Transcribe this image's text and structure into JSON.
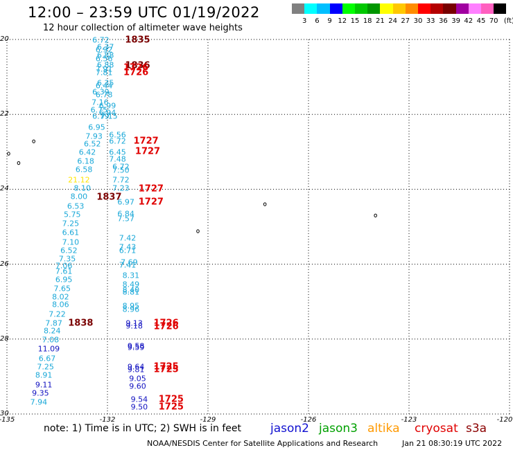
{
  "title": "12:00 – 23:59 UTC 01/19/2022",
  "subtitle": "12 hour collection of altimeter wave heights",
  "legend": {
    "unit": "(ft)",
    "swatches": [
      "#808080",
      "#00ffff",
      "#00bfff",
      "#0000ff",
      "#00ff00",
      "#00c800",
      "#009600",
      "#ffff00",
      "#ffc800",
      "#ff8c00",
      "#ff0000",
      "#b40000",
      "#780000",
      "#a000a0",
      "#ff80ff",
      "#ff60c0",
      "#000000"
    ],
    "labels": [
      "3",
      "6",
      "9",
      "12",
      "15",
      "18",
      "21",
      "24",
      "27",
      "30",
      "33",
      "36",
      "39",
      "42",
      "45",
      "70"
    ]
  },
  "axes": {
    "lon_labels": [
      "-135",
      "-132",
      "-129",
      "-126",
      "-123",
      "-120"
    ],
    "lat_labels": [
      "20",
      "22",
      "24",
      "26",
      "28",
      "30"
    ]
  },
  "map_data": {
    "lon_range": [
      -135,
      -120
    ],
    "lat_range": [
      20,
      30
    ],
    "measurements": [
      {
        "lon": -132.2,
        "lat": 20.02,
        "v": "6.72",
        "sat": "altika"
      },
      {
        "lon": -132.06,
        "lat": 20.2,
        "v": "6.37",
        "sat": "altika"
      },
      {
        "lon": -132.1,
        "lat": 20.28,
        "v": "6.92",
        "sat": "altika"
      },
      {
        "lon": -132.06,
        "lat": 20.43,
        "v": "6.88",
        "sat": "altika"
      },
      {
        "lon": -132.1,
        "lat": 20.52,
        "v": "6.56",
        "sat": "altika"
      },
      {
        "lon": -132.06,
        "lat": 20.68,
        "v": "6.88",
        "sat": "altika"
      },
      {
        "lon": -132.1,
        "lat": 20.8,
        "v": "7.91",
        "sat": "altika"
      },
      {
        "lon": -132.1,
        "lat": 20.88,
        "v": "7.81",
        "sat": "altika"
      },
      {
        "lon": -132.06,
        "lat": 21.16,
        "v": "6.35",
        "sat": "altika"
      },
      {
        "lon": -132.1,
        "lat": 21.23,
        "v": "6.44",
        "sat": "altika"
      },
      {
        "lon": -132.2,
        "lat": 21.4,
        "v": "6.39",
        "sat": "altika"
      },
      {
        "lon": -132.1,
        "lat": 21.48,
        "v": "6.78",
        "sat": "altika"
      },
      {
        "lon": -132.22,
        "lat": 21.68,
        "v": "7.16",
        "sat": "altika"
      },
      {
        "lon": -132.0,
        "lat": 21.77,
        "v": "6.99",
        "sat": "altika"
      },
      {
        "lon": -132.25,
        "lat": 21.88,
        "v": "6.75",
        "sat": "altika"
      },
      {
        "lon": -132.0,
        "lat": 21.96,
        "v": "6.94",
        "sat": "altika"
      },
      {
        "lon": -132.2,
        "lat": 22.05,
        "v": "6.79",
        "sat": "altika"
      },
      {
        "lon": -131.95,
        "lat": 22.05,
        "v": "7.15",
        "sat": "altika"
      },
      {
        "lon": -132.32,
        "lat": 22.35,
        "v": "6.95",
        "sat": "altika"
      },
      {
        "lon": -132.4,
        "lat": 22.58,
        "v": "7.93",
        "sat": "altika"
      },
      {
        "lon": -131.7,
        "lat": 22.55,
        "v": "6.56",
        "sat": "altika"
      },
      {
        "lon": -131.7,
        "lat": 22.72,
        "v": "6.72",
        "sat": "altika"
      },
      {
        "lon": -132.45,
        "lat": 22.8,
        "v": "6.52",
        "sat": "altika"
      },
      {
        "lon": -132.6,
        "lat": 23.02,
        "v": "6.42",
        "sat": "altika"
      },
      {
        "lon": -131.7,
        "lat": 23.02,
        "v": "6.45",
        "sat": "altika"
      },
      {
        "lon": -131.7,
        "lat": 23.2,
        "v": "7.48",
        "sat": "altika"
      },
      {
        "lon": -132.65,
        "lat": 23.25,
        "v": "6.18",
        "sat": "altika"
      },
      {
        "lon": -131.6,
        "lat": 23.4,
        "v": "6.72",
        "sat": "altika"
      },
      {
        "lon": -132.7,
        "lat": 23.48,
        "v": "6.58",
        "sat": "altika"
      },
      {
        "lon": -131.6,
        "lat": 23.5,
        "v": "7.50",
        "sat": "altika"
      },
      {
        "lon": -132.85,
        "lat": 23.75,
        "v": "21.12",
        "sat": "altika"
      },
      {
        "lon": -131.6,
        "lat": 23.75,
        "v": "7.72",
        "sat": "altika"
      },
      {
        "lon": -132.75,
        "lat": 23.98,
        "v": "8.10",
        "sat": "altika"
      },
      {
        "lon": -131.6,
        "lat": 23.98,
        "v": "7.23",
        "sat": "altika"
      },
      {
        "lon": -132.85,
        "lat": 24.2,
        "v": "8.00",
        "sat": "altika"
      },
      {
        "lon": -131.45,
        "lat": 24.35,
        "v": "6.97",
        "sat": "altika"
      },
      {
        "lon": -132.95,
        "lat": 24.45,
        "v": "6.53",
        "sat": "altika"
      },
      {
        "lon": -131.45,
        "lat": 24.65,
        "v": "6.84",
        "sat": "altika"
      },
      {
        "lon": -133.05,
        "lat": 24.68,
        "v": "5.75",
        "sat": "altika"
      },
      {
        "lon": -131.45,
        "lat": 24.78,
        "v": "7.57",
        "sat": "altika"
      },
      {
        "lon": -133.1,
        "lat": 24.92,
        "v": "7.25",
        "sat": "altika"
      },
      {
        "lon": -133.1,
        "lat": 25.16,
        "v": "6.61",
        "sat": "altika"
      },
      {
        "lon": -131.4,
        "lat": 25.3,
        "v": "7.42",
        "sat": "altika"
      },
      {
        "lon": -133.1,
        "lat": 25.42,
        "v": "7.10",
        "sat": "altika"
      },
      {
        "lon": -131.4,
        "lat": 25.55,
        "v": "7.43",
        "sat": "altika"
      },
      {
        "lon": -133.15,
        "lat": 25.64,
        "v": "6.52",
        "sat": "altika"
      },
      {
        "lon": -131.4,
        "lat": 25.64,
        "v": "6.71",
        "sat": "altika"
      },
      {
        "lon": -133.2,
        "lat": 25.86,
        "v": "7.35",
        "sat": "altika"
      },
      {
        "lon": -131.35,
        "lat": 25.95,
        "v": "7.69",
        "sat": "altika"
      },
      {
        "lon": -131.4,
        "lat": 26.02,
        "v": "7.41",
        "sat": "altika"
      },
      {
        "lon": -133.3,
        "lat": 26.04,
        "v": "7.06",
        "sat": "altika"
      },
      {
        "lon": -133.3,
        "lat": 26.2,
        "v": "7.61",
        "sat": "altika"
      },
      {
        "lon": -131.3,
        "lat": 26.3,
        "v": "8.31",
        "sat": "altika"
      },
      {
        "lon": -133.3,
        "lat": 26.42,
        "v": "6.95",
        "sat": "altika"
      },
      {
        "lon": -131.3,
        "lat": 26.55,
        "v": "8.49",
        "sat": "altika"
      },
      {
        "lon": -133.35,
        "lat": 26.66,
        "v": "7.65",
        "sat": "altika"
      },
      {
        "lon": -131.3,
        "lat": 26.7,
        "v": "8.40",
        "sat": "altika"
      },
      {
        "lon": -131.3,
        "lat": 26.75,
        "v": "8.81",
        "sat": "altika"
      },
      {
        "lon": -133.4,
        "lat": 26.88,
        "v": "8.02",
        "sat": "altika"
      },
      {
        "lon": -133.4,
        "lat": 27.08,
        "v": "8.06",
        "sat": "altika"
      },
      {
        "lon": -131.3,
        "lat": 27.12,
        "v": "8.95",
        "sat": "altika"
      },
      {
        "lon": -131.3,
        "lat": 27.2,
        "v": "8.96",
        "sat": "altika"
      },
      {
        "lon": -133.5,
        "lat": 27.33,
        "v": "7.22",
        "sat": "altika"
      },
      {
        "lon": -133.6,
        "lat": 27.58,
        "v": "7.87",
        "sat": "altika"
      },
      {
        "lon": -133.65,
        "lat": 27.78,
        "v": "8.24",
        "sat": "altika"
      },
      {
        "lon": -133.7,
        "lat": 28.02,
        "v": "7.08",
        "sat": "altika"
      },
      {
        "lon": -133.75,
        "lat": 28.27,
        "v": "11.09",
        "sat": "jason2"
      },
      {
        "lon": -133.8,
        "lat": 28.52,
        "v": "6.67",
        "sat": "altika"
      },
      {
        "lon": -133.85,
        "lat": 28.74,
        "v": "7.25",
        "sat": "altika"
      },
      {
        "lon": -133.9,
        "lat": 28.97,
        "v": "8.91",
        "sat": "altika"
      },
      {
        "lon": -133.9,
        "lat": 29.22,
        "v": "9.11",
        "sat": "jason2"
      },
      {
        "lon": -134.0,
        "lat": 29.45,
        "v": "9.35",
        "sat": "jason2"
      },
      {
        "lon": -134.05,
        "lat": 29.68,
        "v": "7.94",
        "sat": "altika"
      },
      {
        "lon": -131.2,
        "lat": 27.58,
        "v": "9.13",
        "sat": "jason2"
      },
      {
        "lon": -131.2,
        "lat": 27.65,
        "v": "9.18",
        "sat": "jason2"
      },
      {
        "lon": -131.15,
        "lat": 28.18,
        "v": "9.58",
        "sat": "jason2"
      },
      {
        "lon": -131.15,
        "lat": 28.22,
        "v": "9.59",
        "sat": "jason2"
      },
      {
        "lon": -131.15,
        "lat": 28.74,
        "v": "9.64",
        "sat": "jason2"
      },
      {
        "lon": -131.15,
        "lat": 28.82,
        "v": "9.81",
        "sat": "jason2"
      },
      {
        "lon": -131.1,
        "lat": 29.05,
        "v": "9.05",
        "sat": "jason2"
      },
      {
        "lon": -131.1,
        "lat": 29.26,
        "v": "9.60",
        "sat": "jason2"
      },
      {
        "lon": -131.05,
        "lat": 29.62,
        "v": "9.54",
        "sat": "jason2"
      },
      {
        "lon": -131.05,
        "lat": 29.82,
        "v": "9.50",
        "sat": "jason2"
      }
    ],
    "timestamps": [
      {
        "lon": -131.1,
        "lat": 20.02,
        "t": "1835",
        "sat": "s3a"
      },
      {
        "lon": -131.1,
        "lat": 20.7,
        "t": "1836",
        "sat": "s3a"
      },
      {
        "lon": -131.15,
        "lat": 20.75,
        "t": "1726",
        "sat": "cryosat"
      },
      {
        "lon": -131.15,
        "lat": 20.88,
        "t": "1726",
        "sat": "cryosat"
      },
      {
        "lon": -130.85,
        "lat": 22.72,
        "t": "1727",
        "sat": "cryosat"
      },
      {
        "lon": -130.8,
        "lat": 23.0,
        "t": "1727",
        "sat": "cryosat"
      },
      {
        "lon": -130.7,
        "lat": 24.0,
        "t": "1727",
        "sat": "cryosat"
      },
      {
        "lon": -130.7,
        "lat": 24.35,
        "t": "1727",
        "sat": "cryosat"
      },
      {
        "lon": -131.95,
        "lat": 24.22,
        "t": "1837",
        "sat": "s3a"
      },
      {
        "lon": -132.8,
        "lat": 27.58,
        "t": "1838",
        "sat": "s3a"
      },
      {
        "lon": -130.25,
        "lat": 27.58,
        "t": "1726",
        "sat": "cryosat"
      },
      {
        "lon": -130.25,
        "lat": 27.68,
        "t": "1726",
        "sat": "cryosat"
      },
      {
        "lon": -130.25,
        "lat": 28.74,
        "t": "1725",
        "sat": "cryosat"
      },
      {
        "lon": -130.25,
        "lat": 28.82,
        "t": "1725",
        "sat": "cryosat"
      },
      {
        "lon": -130.1,
        "lat": 29.62,
        "t": "1725",
        "sat": "cryosat"
      },
      {
        "lon": -130.1,
        "lat": 29.82,
        "t": "1725",
        "sat": "cryosat"
      }
    ],
    "sat_colors": {
      "altika": "#1aa8d8",
      "jason2": "#1010c0",
      "jason3": "#009600",
      "cryosat": "#e00000",
      "s3a": "#7a0000",
      "altika_high": "#ffe600"
    },
    "islands": [
      {
        "lon": -134.2,
        "lat": 22.72
      },
      {
        "lon": -134.95,
        "lat": 23.05
      },
      {
        "lon": -134.65,
        "lat": 23.3
      },
      {
        "lon": -129.3,
        "lat": 25.12
      },
      {
        "lon": -127.3,
        "lat": 24.4
      },
      {
        "lon": -124.0,
        "lat": 24.7
      }
    ]
  },
  "note": "note: 1) Time is in UTC; 2) SWH is in feet",
  "satellites": [
    {
      "name": "jason2",
      "color": "#1010d0"
    },
    {
      "name": "jason3",
      "color": "#00a000"
    },
    {
      "name": "altika",
      "color": "#ff9900"
    },
    {
      "name": "cryosat",
      "color": "#e00000"
    },
    {
      "name": "s3a",
      "color": "#8b0000"
    }
  ],
  "credit": "NOAA/NESDIS Center for Satellite Applications and Research",
  "generated": "Jan 21 08:30:19 UTC 2022"
}
